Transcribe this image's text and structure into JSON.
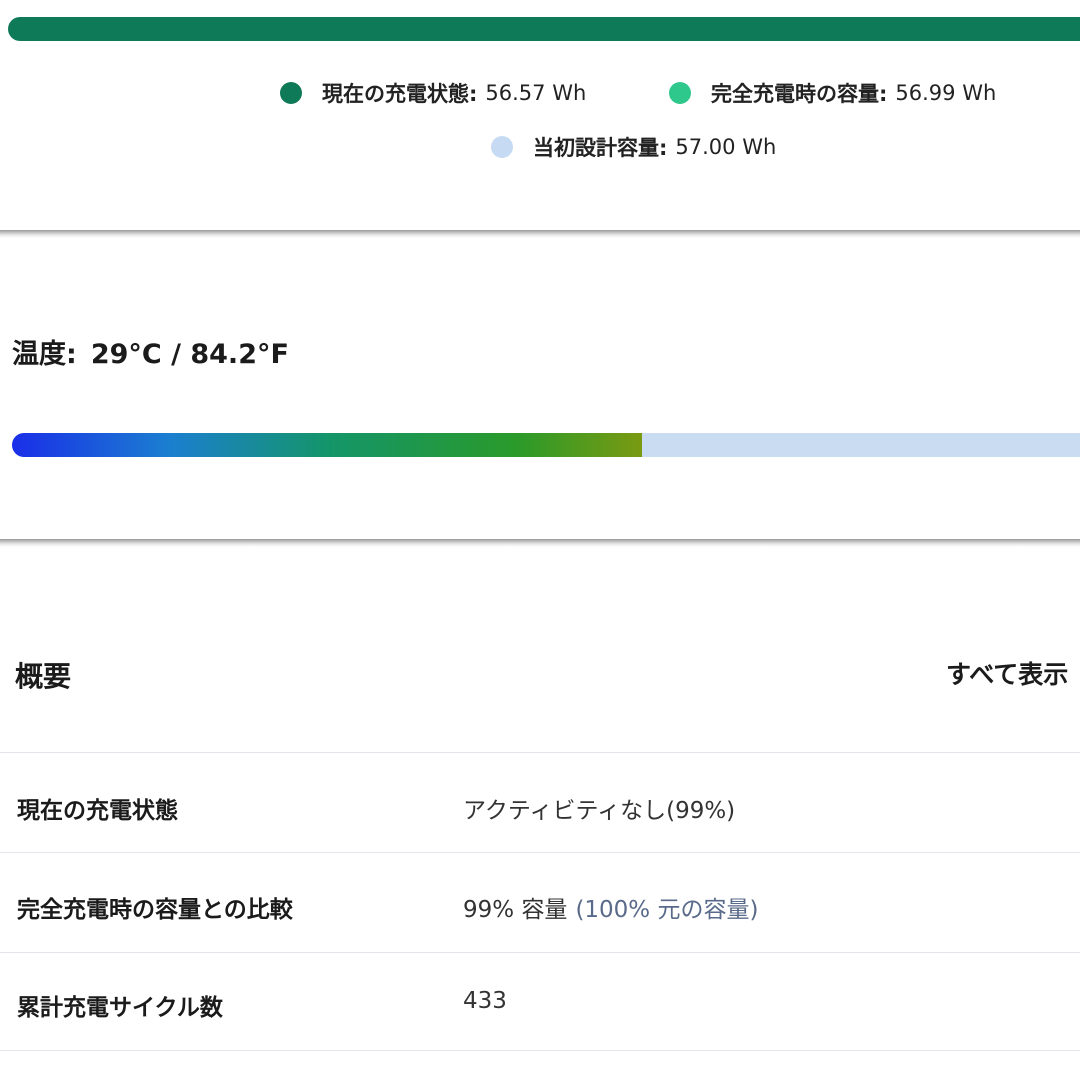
{
  "legend": [
    {
      "label": "現在の充電状態:",
      "value": "56.57 Wh"
    },
    {
      "label": "完全充電時の容量:",
      "value": "56.99 Wh"
    },
    {
      "label": "当初設計容量:",
      "value": "57.00 Wh"
    }
  ],
  "temperature": {
    "label": "温度:",
    "value": "29°C / 84.2°F"
  },
  "summary": {
    "title": "概要",
    "link": "すべて表示",
    "rows": [
      [
        "現在の充電状態",
        "アクティビティなし(99%)"
      ],
      [
        "完全充電時の容量との比較",
        "99% 容量",
        "(100% 元の容量)"
      ],
      [
        "累計充電サイクル数",
        "433"
      ]
    ]
  }
}
